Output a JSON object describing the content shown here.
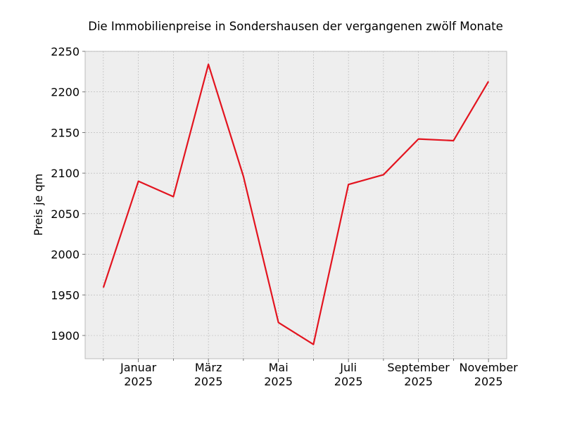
{
  "chart_data": {
    "type": "line",
    "title": "Die Immobilienpreise in Sondershausen der vergangenen zwölf Monate",
    "y_label": "Preis je qm",
    "categories": [
      null,
      "Januar\n2025",
      null,
      "März\n2025",
      null,
      "Mai\n2025",
      null,
      "Juli\n2025",
      null,
      "September\n2025",
      null,
      "November\n2025"
    ],
    "series": [
      {
        "name": "Preis je qm",
        "color": "#e3141f",
        "values": [
          1959,
          2090,
          2071,
          2234,
          2096,
          1916,
          1889,
          2086,
          2098,
          2142,
          2140,
          2213
        ]
      }
    ],
    "ylim": [
      1871.4,
      2250
    ],
    "yticks": [
      1900,
      1950,
      2000,
      2050,
      2100,
      2150,
      2200,
      2250
    ],
    "grid": true
  }
}
